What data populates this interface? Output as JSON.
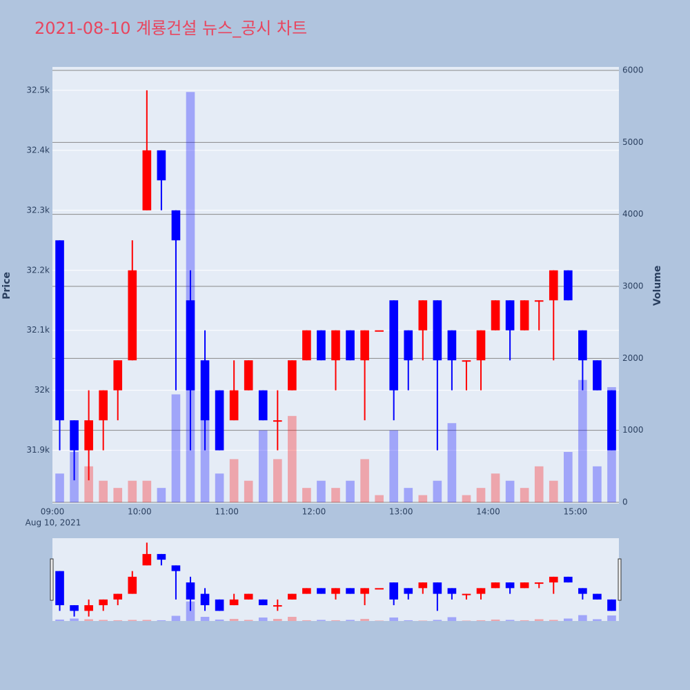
{
  "chart_data": {
    "type": "candlestick",
    "title": "2021-08-10 계룡건설 뉴스_공시 차트",
    "y_label": "Price",
    "y2_label": "Volume",
    "x_date_label": "Aug 10, 2021",
    "x": [
      "2021-08-10 09:05",
      "2021-08-10 09:15",
      "2021-08-10 09:25",
      "2021-08-10 09:35",
      "2021-08-10 09:45",
      "2021-08-10 09:55",
      "2021-08-10 10:05",
      "2021-08-10 10:15",
      "2021-08-10 10:25",
      "2021-08-10 10:35",
      "2021-08-10 10:45",
      "2021-08-10 10:55",
      "2021-08-10 11:05",
      "2021-08-10 11:15",
      "2021-08-10 11:25",
      "2021-08-10 11:35",
      "2021-08-10 11:45",
      "2021-08-10 11:55",
      "2021-08-10 12:05",
      "2021-08-10 12:15",
      "2021-08-10 12:25",
      "2021-08-10 12:35",
      "2021-08-10 12:45",
      "2021-08-10 12:55",
      "2021-08-10 13:05",
      "2021-08-10 13:15",
      "2021-08-10 13:25",
      "2021-08-10 13:35",
      "2021-08-10 13:45",
      "2021-08-10 13:55",
      "2021-08-10 14:05",
      "2021-08-10 14:15",
      "2021-08-10 14:25",
      "2021-08-10 14:35",
      "2021-08-10 14:45",
      "2021-08-10 14:55",
      "2021-08-10 15:05",
      "2021-08-10 15:15",
      "2021-08-10 15:25"
    ],
    "open": [
      32250,
      31950,
      31900,
      31950,
      32000,
      32050,
      32300,
      32400,
      32300,
      32150,
      32050,
      32000,
      31950,
      32000,
      32000,
      31950,
      32000,
      32050,
      32100,
      32050,
      32100,
      32050,
      32100,
      32150,
      32100,
      32100,
      32150,
      32100,
      32050,
      32050,
      32100,
      32150,
      32100,
      32150,
      32150,
      32200,
      32100,
      32050,
      32000
    ],
    "high": [
      32250,
      31950,
      32000,
      32000,
      32050,
      32250,
      32500,
      32400,
      32300,
      32200,
      32100,
      32000,
      32050,
      32050,
      32000,
      32000,
      32050,
      32100,
      32100,
      32100,
      32100,
      32100,
      32100,
      32150,
      32100,
      32150,
      32150,
      32100,
      32050,
      32100,
      32150,
      32150,
      32150,
      32150,
      32200,
      32200,
      32100,
      32050,
      32000
    ],
    "low": [
      31900,
      31850,
      31850,
      31900,
      31950,
      32050,
      32300,
      32300,
      32000,
      31900,
      31900,
      31900,
      31950,
      32000,
      31950,
      31900,
      32000,
      32050,
      32050,
      32000,
      32050,
      31950,
      32100,
      31950,
      32000,
      32050,
      31900,
      32000,
      32000,
      32000,
      32100,
      32050,
      32100,
      32100,
      32050,
      32150,
      32000,
      32000,
      31900
    ],
    "close": [
      31950,
      31900,
      31950,
      32000,
      32050,
      32200,
      32400,
      32350,
      32250,
      32000,
      31950,
      31900,
      32000,
      32050,
      31950,
      31950,
      32050,
      32100,
      32050,
      32100,
      32050,
      32100,
      32100,
      32000,
      32050,
      32150,
      32050,
      32050,
      32050,
      32100,
      32150,
      32100,
      32150,
      32150,
      32200,
      32150,
      32050,
      32000,
      31900
    ],
    "volume": [
      400,
      700,
      500,
      300,
      200,
      300,
      300,
      200,
      1500,
      5700,
      1200,
      400,
      600,
      300,
      1000,
      600,
      1200,
      200,
      300,
      200,
      300,
      600,
      100,
      1000,
      200,
      100,
      300,
      1100,
      100,
      200,
      400,
      300,
      200,
      500,
      300,
      700,
      1700,
      500,
      1600
    ],
    "increasing_color": "#ff0000",
    "decreasing_color": "#0000ff",
    "xlim": [
      "2021-08-10 09:00",
      "2021-08-10 15:30"
    ],
    "xticks": [
      {
        "value": "2021-08-10 09:00",
        "label": "09:00"
      },
      {
        "value": "2021-08-10 10:00",
        "label": "10:00"
      },
      {
        "value": "2021-08-10 11:00",
        "label": "11:00"
      },
      {
        "value": "2021-08-10 12:00",
        "label": "12:00"
      },
      {
        "value": "2021-08-10 13:00",
        "label": "13:00"
      },
      {
        "value": "2021-08-10 14:00",
        "label": "14:00"
      },
      {
        "value": "2021-08-10 15:00",
        "label": "15:00"
      }
    ],
    "ylim": [
      31811,
      32539
    ],
    "yticks": [
      {
        "value": 31900,
        "label": "31.9k"
      },
      {
        "value": 32000,
        "label": "32k"
      },
      {
        "value": 32100,
        "label": "32.1k"
      },
      {
        "value": 32200,
        "label": "32.2k"
      },
      {
        "value": 32300,
        "label": "32.3k"
      },
      {
        "value": 32400,
        "label": "32.4k"
      },
      {
        "value": 32500,
        "label": "32.5k"
      }
    ],
    "y2lim": [
      -19,
      6048
    ],
    "y2ticks": [
      0,
      1000,
      2000,
      3000,
      4000,
      5000,
      6000
    ],
    "grid": true,
    "range_slider": true
  }
}
